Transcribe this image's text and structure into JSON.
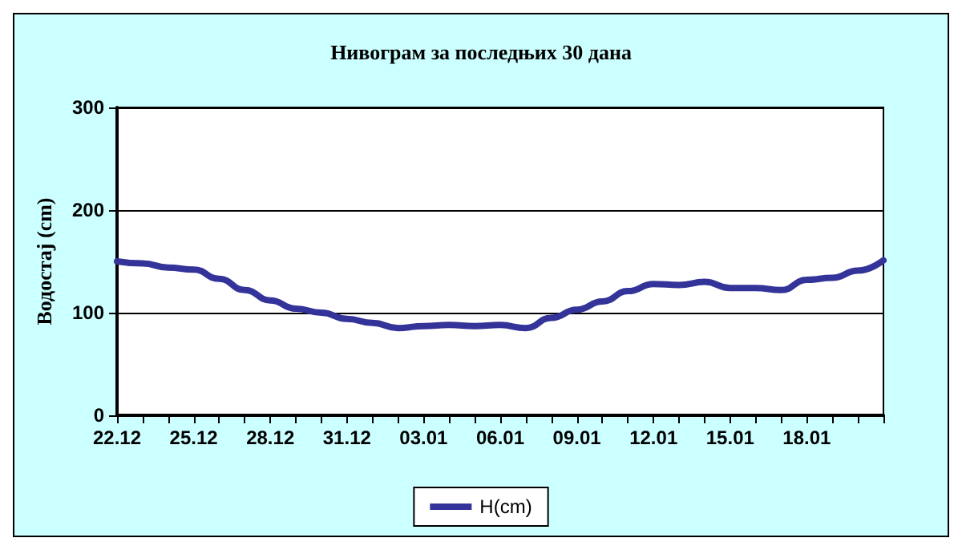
{
  "chart_data": {
    "type": "line",
    "title": "Нивограм за последњих 30 дана",
    "ylabel": "Водостај (cm)",
    "categories": [
      "22.12",
      null,
      null,
      "25.12",
      null,
      null,
      "28.12",
      null,
      null,
      "31.12",
      null,
      null,
      "03.01",
      null,
      null,
      "06.01",
      null,
      null,
      "09.01",
      null,
      null,
      "12.01",
      null,
      null,
      "15.01",
      null,
      null,
      "18.01",
      null,
      null,
      null
    ],
    "series": [
      {
        "name": "H(cm)",
        "color": "#333399",
        "values": [
          150,
          148,
          144,
          142,
          133,
          122,
          112,
          104,
          100,
          94,
          90,
          85,
          87,
          88,
          87,
          88,
          85,
          95,
          103,
          111,
          121,
          128,
          127,
          130,
          124,
          124,
          122,
          132,
          134,
          141,
          151
        ]
      }
    ],
    "ylim": [
      0,
      300
    ],
    "yticks": [
      0,
      100,
      200,
      300
    ],
    "grid": "y",
    "legend": "bottom",
    "marker": "none",
    "line_style": "solid"
  }
}
